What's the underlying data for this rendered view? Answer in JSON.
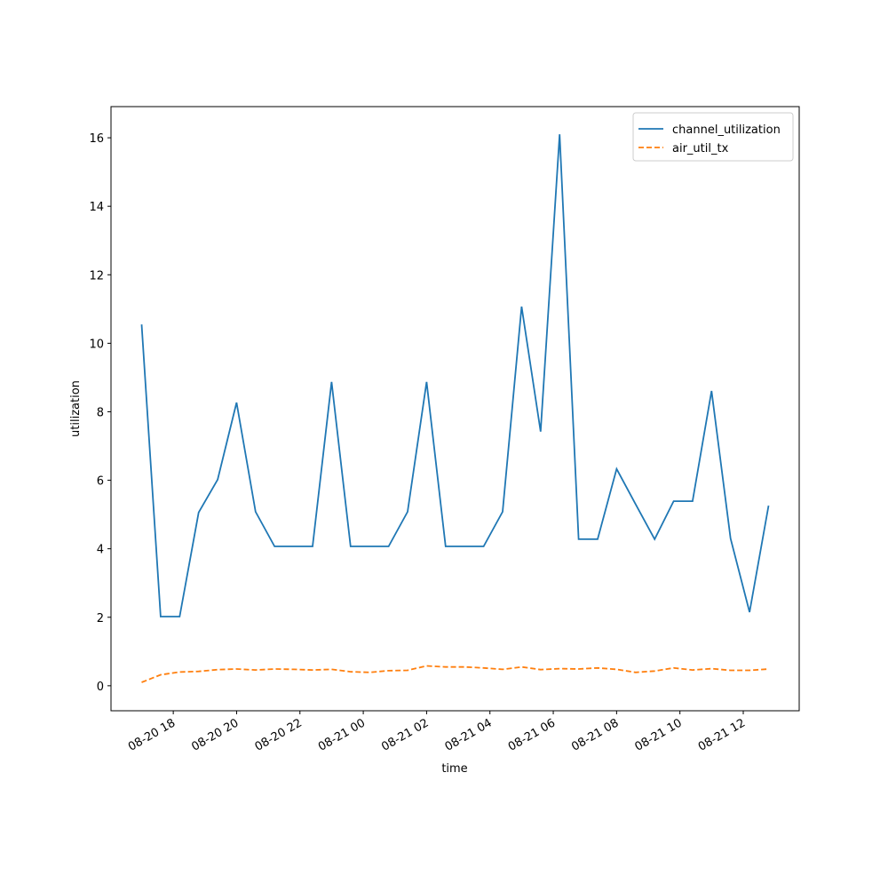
{
  "chart_data": {
    "type": "line",
    "x_label": "time",
    "y_label": "utilization",
    "x": [
      "08-20 17:00",
      "08-20 17:36",
      "08-20 18:12",
      "08-20 18:48",
      "08-20 19:24",
      "08-20 20:00",
      "08-20 20:36",
      "08-20 21:12",
      "08-20 21:48",
      "08-20 22:24",
      "08-20 23:00",
      "08-20 23:36",
      "08-21 00:12",
      "08-21 00:48",
      "08-21 01:24",
      "08-21 02:00",
      "08-21 02:36",
      "08-21 03:12",
      "08-21 03:48",
      "08-21 04:24",
      "08-21 05:00",
      "08-21 05:36",
      "08-21 06:12",
      "08-21 06:48",
      "08-21 07:24",
      "08-21 08:00",
      "08-21 08:36",
      "08-21 09:12",
      "08-21 09:48",
      "08-21 10:24",
      "08-21 11:00",
      "08-21 11:36",
      "08-21 12:12",
      "08-21 12:48"
    ],
    "series": [
      {
        "name": "channel_utilization",
        "color": "#1f77b4",
        "dash": false,
        "values": [
          10.55,
          2.02,
          2.02,
          5.06,
          6.02,
          8.27,
          5.08,
          4.07,
          4.07,
          4.07,
          8.87,
          4.07,
          4.07,
          4.07,
          5.08,
          8.87,
          4.07,
          4.07,
          4.07,
          5.08,
          11.07,
          7.42,
          16.1,
          4.28,
          4.28,
          6.33,
          5.3,
          4.28,
          5.39,
          5.39,
          8.61,
          4.3,
          2.15,
          5.26
        ]
      },
      {
        "name": "air_util_tx",
        "color": "#ff7f0e",
        "dash": true,
        "values": [
          0.1,
          0.32,
          0.4,
          0.42,
          0.47,
          0.49,
          0.46,
          0.49,
          0.48,
          0.46,
          0.48,
          0.41,
          0.39,
          0.44,
          0.45,
          0.58,
          0.55,
          0.55,
          0.52,
          0.48,
          0.55,
          0.47,
          0.5,
          0.49,
          0.52,
          0.48,
          0.39,
          0.43,
          0.52,
          0.46,
          0.5,
          0.45,
          0.45,
          0.49
        ]
      }
    ],
    "xlim": [
      "08-20 16:02",
      "08-21 13:46"
    ],
    "xticks": [
      "08-20 18",
      "08-20 20",
      "08-20 22",
      "08-21 00",
      "08-21 02",
      "08-21 04",
      "08-21 06",
      "08-21 08",
      "08-21 10",
      "08-21 12"
    ],
    "ylim": [
      -0.73,
      16.91
    ],
    "yticks": [
      0,
      2,
      4,
      6,
      8,
      10,
      12,
      14,
      16
    ],
    "grid": false,
    "legend": "upper right"
  }
}
